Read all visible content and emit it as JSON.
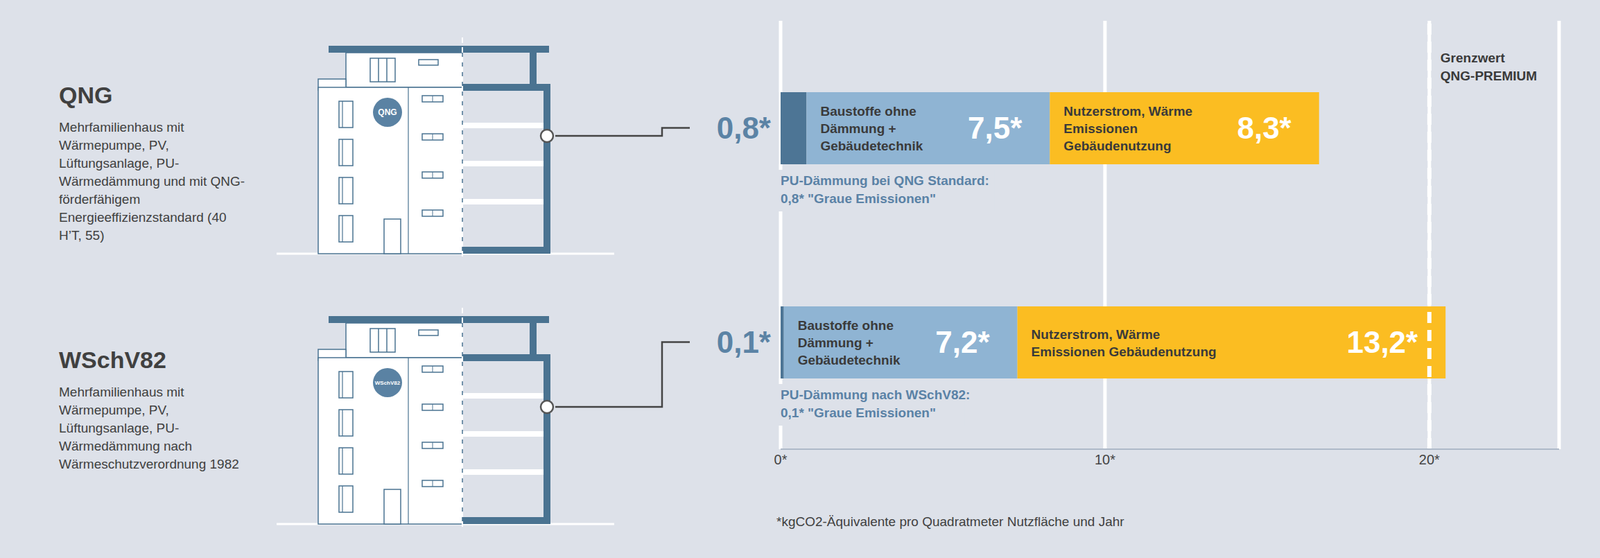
{
  "chart_data": {
    "type": "bar",
    "orientation": "horizontal",
    "stacked": true,
    "data_labels": true,
    "tick_labels": "x",
    "grid": true,
    "categories": [
      "QNG",
      "WSchV82"
    ],
    "category_descriptions": [
      "Mehrfamilienhaus mit Wärmepumpe, PV, Lüftungsanlage, PU-Wärmedämmung und mit QNG-förderfähigem Energieeffizienzstandard (40 H’T, 55)",
      "Mehrfamilienhaus mit Wärmepumpe, PV, Lüftungsanlage, PU-Wärmedämmung nach Wärmeschutzverordnung 1982"
    ],
    "series": [
      {
        "color": "#4d7595",
        "values": [
          0.8,
          0.1
        ],
        "value_labels": [
          "0,8*",
          "0,1*"
        ],
        "annotations": [
          "PU-Dämmung bei QNG Standard: 0,8* \"Graue Emissionen\"",
          "PU-Dämmung nach WSchV82: 0,1* \"Graue Emissionen\""
        ]
      },
      {
        "name": "Baustoffe ohne Dämmung + Gebäudetechnik",
        "color": "#8fb4d3",
        "values": [
          7.5,
          7.2
        ],
        "value_labels": [
          "7,5*",
          "7,2*"
        ]
      },
      {
        "name": "Nutzerstrom, Wärme Emissionen Gebäudenutzung",
        "color": "#fbbd22",
        "values": [
          8.3,
          13.2
        ],
        "value_labels": [
          "8,3*",
          "13,2*"
        ]
      }
    ],
    "xlim": [
      0,
      24
    ],
    "xticks": [
      {
        "value": 0,
        "label": "0*"
      },
      {
        "value": 10,
        "label": "10*"
      },
      {
        "value": 20,
        "label": "20*"
      }
    ],
    "reference_line": {
      "value": 20,
      "label": "Grenzwert QNG-PREMIUM"
    },
    "footnote": "*kgCO2-Äquivalente pro Quadratmeter Nutzfläche und Jahr"
  }
}
